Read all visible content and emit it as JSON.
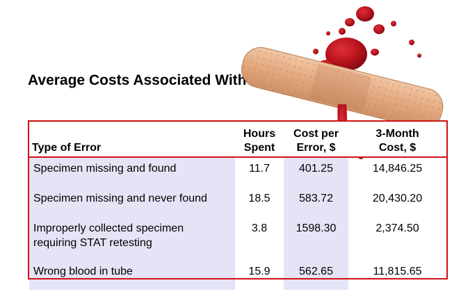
{
  "slide": {
    "title": "Average Costs Associated With Lab Errors"
  },
  "table": {
    "headers": {
      "type": "Type of Error",
      "hours_line1": "Hours",
      "hours_line2": "Spent",
      "cost_line1": "Cost per",
      "cost_line2": "Error, $",
      "three_month_line1": "3-Month",
      "three_month_line2": "Cost, $"
    },
    "rows": [
      {
        "type_line1": "Specimen missing and found",
        "type_line2": "",
        "hours": "11.7",
        "cost_per_error": "401.25",
        "three_month_cost": "14,846.25"
      },
      {
        "type_line1": "Specimen missing and never found",
        "type_line2": "",
        "hours": "18.5",
        "cost_per_error": "583.72",
        "three_month_cost": "20,430.20"
      },
      {
        "type_line1": "Improperly collected specimen",
        "type_line2": "requiring STAT retesting",
        "hours": "3.8",
        "cost_per_error": "1598.30",
        "three_month_cost": "2,374.50"
      },
      {
        "type_line1": "Wrong blood in tube",
        "type_line2": "",
        "hours": "15.9",
        "cost_per_error": "562.65",
        "three_month_cost": "11,815.65"
      }
    ]
  },
  "colors": {
    "border": "#d01212",
    "column_shade": "#e4e4f6",
    "bandage": "#e8b48e",
    "blood": "#b5121b"
  },
  "illustration": {
    "icon": "bandage-with-blood-splatter-icon"
  }
}
